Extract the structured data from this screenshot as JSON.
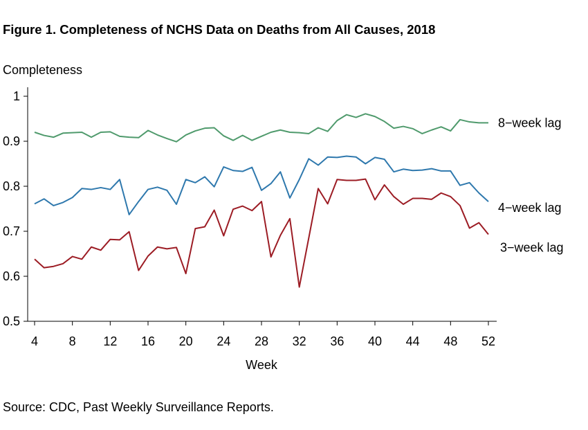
{
  "title": "Figure 1. Completeness of NCHS Data on Deaths from All Causes, 2018",
  "source": "Source: CDC, Past Weekly Surveillance Reports.",
  "chart_data": {
    "type": "line",
    "title": "Figure 1. Completeness of NCHS Data on Deaths from All Causes, 2018",
    "xlabel": "Week",
    "ylabel": "Completeness",
    "xlim": [
      4,
      52
    ],
    "ylim": [
      0.5,
      1
    ],
    "x_ticks": [
      4,
      8,
      12,
      16,
      20,
      24,
      28,
      32,
      36,
      40,
      44,
      48,
      52
    ],
    "x_tick_labels": [
      "4",
      "8",
      "12",
      "16",
      "20",
      "24",
      "28",
      "32",
      "36",
      "40",
      "44",
      "48",
      "52"
    ],
    "y_ticks": [
      0.5,
      0.6,
      0.7,
      0.8,
      0.9,
      1
    ],
    "y_tick_labels": [
      "0.5",
      "0.6",
      "0.7",
      "0.8",
      "0.9",
      "1"
    ],
    "grid": false,
    "legend": "direct labels at right end of lines",
    "x": [
      4,
      5,
      6,
      7,
      8,
      9,
      10,
      11,
      12,
      13,
      14,
      15,
      16,
      17,
      18,
      19,
      20,
      21,
      22,
      23,
      24,
      25,
      26,
      27,
      28,
      29,
      30,
      31,
      32,
      33,
      34,
      35,
      36,
      37,
      38,
      39,
      40,
      41,
      42,
      43,
      44,
      45,
      46,
      47,
      48,
      49,
      50,
      51,
      52
    ],
    "series": [
      {
        "name": "8−week lag",
        "color": "#4f9a6c",
        "values": [
          0.92,
          0.913,
          0.909,
          0.918,
          0.919,
          0.92,
          0.909,
          0.92,
          0.921,
          0.911,
          0.909,
          0.908,
          0.924,
          0.914,
          0.906,
          0.899,
          0.914,
          0.923,
          0.929,
          0.93,
          0.912,
          0.902,
          0.913,
          0.902,
          0.911,
          0.92,
          0.925,
          0.92,
          0.919,
          0.917,
          0.93,
          0.922,
          0.946,
          0.959,
          0.953,
          0.961,
          0.955,
          0.944,
          0.929,
          0.933,
          0.928,
          0.917,
          0.925,
          0.932,
          0.923,
          0.948,
          0.943,
          0.941,
          0.941
        ]
      },
      {
        "name": "4−week lag",
        "color": "#2e78ad",
        "values": [
          0.761,
          0.772,
          0.757,
          0.764,
          0.775,
          0.795,
          0.793,
          0.797,
          0.793,
          0.815,
          0.737,
          0.766,
          0.793,
          0.798,
          0.791,
          0.76,
          0.815,
          0.808,
          0.821,
          0.799,
          0.843,
          0.835,
          0.833,
          0.842,
          0.791,
          0.806,
          0.832,
          0.774,
          0.815,
          0.861,
          0.847,
          0.865,
          0.864,
          0.867,
          0.865,
          0.85,
          0.864,
          0.86,
          0.832,
          0.838,
          0.835,
          0.836,
          0.839,
          0.834,
          0.834,
          0.802,
          0.808,
          0.785,
          0.766
        ]
      },
      {
        "name": "3−week lag",
        "color": "#9c1c24",
        "values": [
          0.638,
          0.619,
          0.622,
          0.628,
          0.644,
          0.638,
          0.665,
          0.658,
          0.682,
          0.681,
          0.699,
          0.613,
          0.645,
          0.665,
          0.661,
          0.664,
          0.606,
          0.706,
          0.71,
          0.747,
          0.69,
          0.749,
          0.756,
          0.746,
          0.766,
          0.643,
          0.691,
          0.728,
          0.576,
          0.685,
          0.795,
          0.761,
          0.815,
          0.813,
          0.813,
          0.816,
          0.77,
          0.803,
          0.777,
          0.76,
          0.773,
          0.773,
          0.771,
          0.785,
          0.777,
          0.757,
          0.707,
          0.719,
          0.693
        ]
      }
    ]
  }
}
